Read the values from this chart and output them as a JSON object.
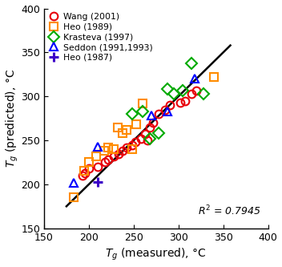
{
  "xlabel": "$T_{g}$ (measured), °C",
  "ylabel": "$T_{g}$ (predicted), °C",
  "xlim": [
    150,
    400
  ],
  "ylim": [
    150,
    400
  ],
  "xticks": [
    150,
    200,
    250,
    300,
    350,
    400
  ],
  "yticks": [
    150,
    200,
    250,
    300,
    350,
    400
  ],
  "r2_text": "$R^{2}$ = 0.7945",
  "fit_line": {
    "x": [
      175,
      358
    ],
    "y": [
      175,
      358
    ]
  },
  "series": {
    "Wang (2001)": {
      "color": "#e8000a",
      "marker": "o",
      "fillstyle": "none",
      "markersize": 7,
      "x": [
        193,
        196,
        200,
        210,
        218,
        222,
        228,
        233,
        238,
        242,
        248,
        252,
        258,
        263,
        265,
        268,
        272,
        278,
        285,
        290,
        302,
        307,
        315,
        320
      ],
      "y": [
        210,
        213,
        218,
        220,
        225,
        228,
        232,
        235,
        238,
        242,
        245,
        248,
        252,
        257,
        250,
        265,
        270,
        280,
        285,
        290,
        293,
        295,
        303,
        307
      ]
    },
    "Heo (1989)": {
      "color": "#ff8c00",
      "marker": "s",
      "fillstyle": "none",
      "markersize": 7,
      "x": [
        183,
        195,
        200,
        208,
        217,
        222,
        228,
        232,
        238,
        242,
        248,
        253,
        260,
        340
      ],
      "y": [
        185,
        215,
        225,
        232,
        238,
        242,
        240,
        265,
        258,
        262,
        240,
        268,
        292,
        322
      ]
    },
    "Krasteva (1997)": {
      "color": "#00aa00",
      "marker": "D",
      "fillstyle": "none",
      "markersize": 7,
      "x": [
        248,
        260,
        268,
        278,
        288,
        295,
        305,
        315,
        328
      ],
      "y": [
        280,
        283,
        252,
        258,
        308,
        303,
        307,
        338,
        303
      ]
    },
    "Seddon (1991,1993)": {
      "color": "#0000ff",
      "marker": "^",
      "fillstyle": "none",
      "markersize": 7,
      "x": [
        183,
        210,
        270,
        288,
        318
      ],
      "y": [
        202,
        243,
        278,
        283,
        320
      ]
    },
    "Heo (1987)": {
      "color": "#3c00c8",
      "marker": "+",
      "fillstyle": "none",
      "markersize": 8,
      "x": [
        210
      ],
      "y": [
        203
      ]
    }
  },
  "background_color": "#ffffff"
}
